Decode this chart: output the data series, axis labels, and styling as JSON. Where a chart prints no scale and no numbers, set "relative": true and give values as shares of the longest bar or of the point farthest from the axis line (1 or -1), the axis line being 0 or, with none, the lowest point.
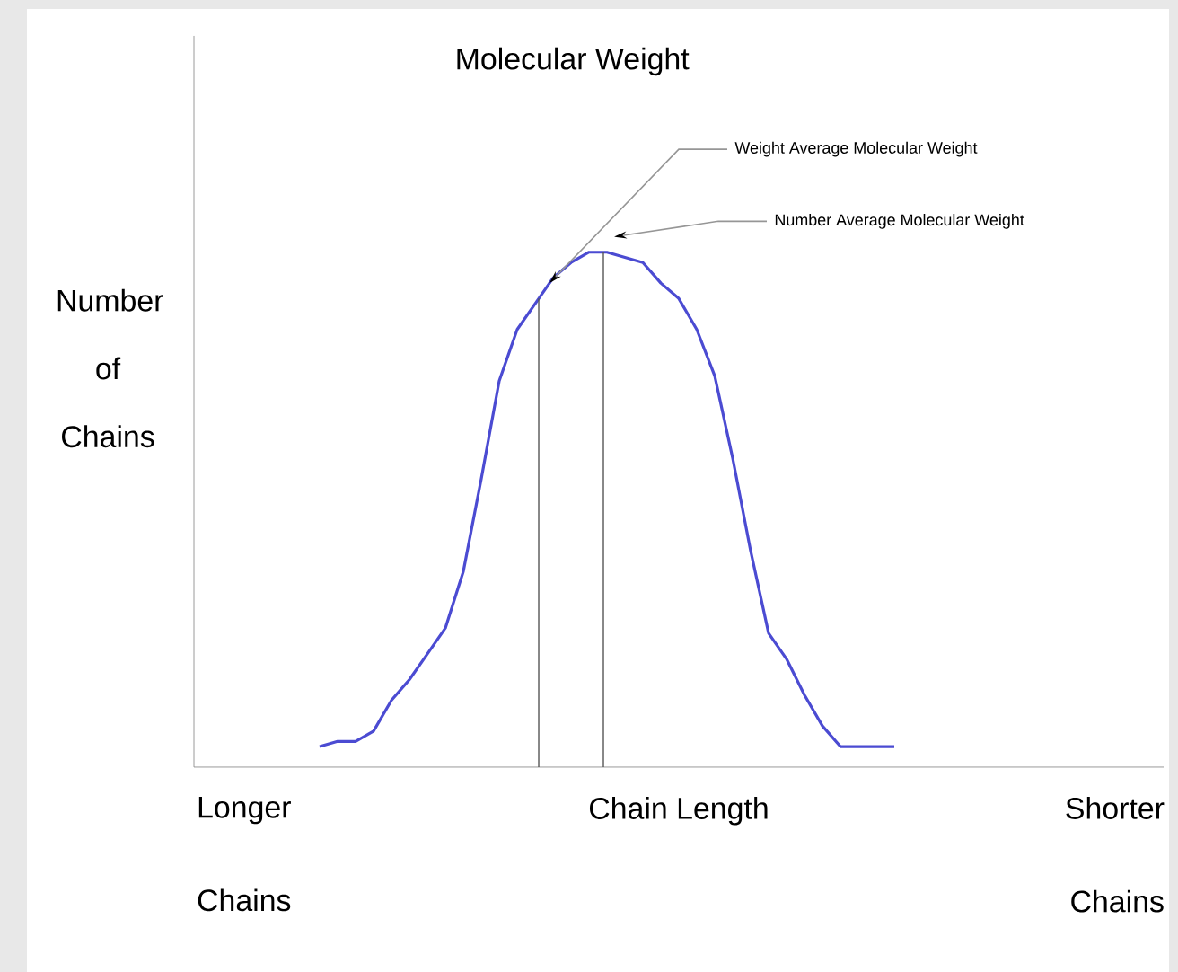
{
  "chart_data": {
    "type": "line",
    "relative": true,
    "title": "Molecular Weight",
    "xlabel": "Chain Length",
    "ylabel": "Number of Chains",
    "categories": [
      null,
      null,
      null,
      null,
      null,
      null,
      null,
      null,
      null,
      null,
      null,
      null,
      null,
      null,
      null,
      null,
      null,
      null,
      null,
      null,
      null,
      null,
      null,
      null,
      null,
      null,
      null,
      null,
      null,
      null,
      null,
      null,
      null,
      null,
      null,
      null,
      null,
      null,
      null,
      null,
      null,
      null,
      null,
      null,
      null,
      null,
      null,
      null,
      null,
      null,
      null,
      null,
      null,
      null,
      null
    ],
    "series": [
      {
        "color": "#4b4bd2",
        "values": [
          null,
          null,
          null,
          null,
          null,
          null,
          null,
          0.04,
          0.05,
          0.05,
          0.07,
          0.13,
          0.17,
          0.22,
          0.27,
          0.38,
          0.56,
          0.75,
          0.85,
          0.9,
          0.95,
          0.98,
          1.0,
          1.0,
          0.99,
          0.98,
          0.94,
          0.91,
          0.85,
          0.76,
          0.6,
          0.42,
          0.26,
          0.21,
          0.14,
          0.08,
          0.04,
          0.04,
          0.04,
          0.04,
          null,
          null,
          null,
          null,
          null,
          null,
          null,
          null,
          null,
          null,
          null,
          null,
          null,
          null,
          null
        ]
      }
    ],
    "annotations": [
      "Longer Chains",
      "Shorter Chains",
      "Weight Average Molecular Weight",
      "Number Average Molecular Weight"
    ]
  }
}
